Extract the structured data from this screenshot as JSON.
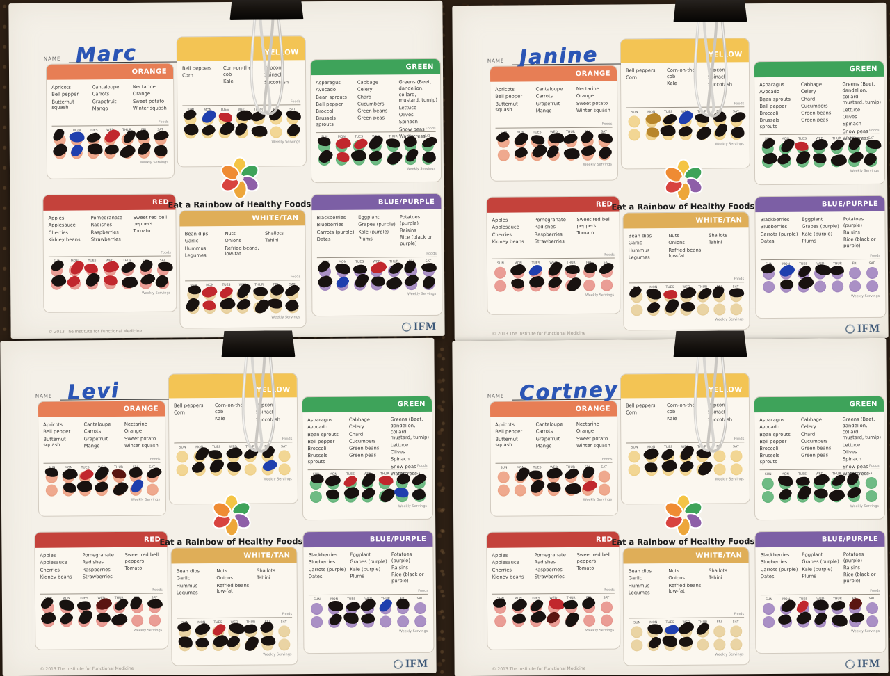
{
  "shared": {
    "name_label": "NAME",
    "title": "Eat a Rainbow of Healthy Foods",
    "footer": "© 2013 The Institute for Functional Medicine",
    "logo_text": "IFM",
    "foods_label": "Foods",
    "weekly_label": "Weekly Servings",
    "days": [
      "SUN",
      "MON",
      "TUES",
      "WED",
      "THUR",
      "FRI",
      "SAT"
    ],
    "panels": [
      {
        "key": "orange",
        "label": "ORANGE",
        "header_color": "#E77E55",
        "circle_color": "#EFA98E",
        "circle_ring": "#DE8A66",
        "foods_height": 64,
        "columns": [
          [
            "Apricots",
            "Bell pepper",
            "Butternut squash"
          ],
          [
            "Cantaloupe",
            "Carrots",
            "Grapefruit",
            "Mango"
          ],
          [
            "Nectarine",
            "Orange",
            "Sweet potato",
            "Winter squash"
          ]
        ]
      },
      {
        "key": "yellow",
        "label": "YELLOW",
        "header_color": "#F3C454",
        "circle_color": "#F2D694",
        "circle_ring": "#E5BE65",
        "foods_height": 62,
        "columns": [
          [
            "Bell peppers",
            "Corn"
          ],
          [
            "Corn-on-the-cob",
            "Kale"
          ],
          [
            "Popcorn",
            "Spinach",
            "Succotash"
          ]
        ]
      },
      {
        "key": "green",
        "label": "GREEN",
        "header_color": "#3EA35A",
        "circle_color": "#6FBB84",
        "circle_ring": "#46A061",
        "foods_height": 80,
        "columns": [
          [
            "Asparagus",
            "Avocado",
            "Bean sprouts",
            "Bell pepper",
            "Broccoli",
            "Brussels sprouts"
          ],
          [
            "Cabbage",
            "Celery",
            "Chard",
            "Cucumbers",
            "Green beans",
            "Green peas"
          ],
          [
            "Greens (Beet, dandelion, collard, mustard, turnip)",
            "Lettuce",
            "Olives",
            "Spinach",
            "Snow peas",
            "Watercress"
          ]
        ]
      },
      {
        "key": "red",
        "label": "RED",
        "header_color": "#C4423B",
        "circle_color": "#EA9D95",
        "circle_ring": "#D97C72",
        "foods_height": 64,
        "columns": [
          [
            "Apples",
            "Applesauce",
            "Cherries",
            "Kidney beans"
          ],
          [
            "Pomegranate",
            "Radishes",
            "Raspberries",
            "Strawberries"
          ],
          [
            "Sweet red bell peppers",
            "Tomato"
          ]
        ]
      },
      {
        "key": "whitetan",
        "label": "WHITE/TAN",
        "header_color": "#DFAE58",
        "circle_color": "#EAD4A4",
        "circle_ring": "#DCBC7C",
        "foods_height": 76,
        "columns": [
          [
            "Bean dips",
            "Garlic",
            "Hummus",
            "Legumes"
          ],
          [
            "Nuts",
            "Onions",
            "Refried beans, low-fat"
          ],
          [
            "Shallots",
            "Tahini"
          ]
        ]
      },
      {
        "key": "bluepurple",
        "label": "BLUE/PURPLE",
        "header_color": "#7C5FA5",
        "circle_color": "#AA90C5",
        "circle_ring": "#8B6BAE",
        "foods_height": 66,
        "columns": [
          [
            "Blackberries",
            "Blueberries",
            "Carrots (purple)",
            "Dates"
          ],
          [
            "Eggplant",
            "Grapes (purple)",
            "Kale (purple)",
            "Plums"
          ],
          [
            "Potatoes (purple)",
            "Raisins",
            "Rice (black or purple)"
          ]
        ]
      }
    ]
  },
  "mark_colors": {
    "black": "#181210",
    "red": "#C1272D",
    "blue": "#1F3FAE",
    "darkred": "#5A1511",
    "gold": "#B8862B"
  },
  "charts": [
    {
      "name": "Marc",
      "marks": {
        "orange": [
          [
            "black",
            "blue",
            "black",
            "red",
            "black",
            "black",
            "black"
          ],
          [
            "black",
            "blue",
            "black",
            "black",
            "black",
            "black",
            "black"
          ]
        ],
        "yellow": [
          [
            "black",
            "blue",
            "red",
            "black",
            "black",
            "black",
            "black"
          ],
          [
            "black",
            "black",
            "black",
            "black",
            "black",
            "none",
            "black"
          ]
        ],
        "green": [
          [
            "black",
            "red",
            "red",
            "black",
            "black",
            "black",
            "black"
          ],
          [
            "black",
            "red",
            "black",
            "black",
            "black",
            "black",
            "black"
          ]
        ],
        "red": [
          [
            "black",
            "red",
            "red",
            "red",
            "black",
            "black",
            "black"
          ],
          [
            "black",
            "red",
            "black",
            "red",
            "black",
            "black",
            "black"
          ]
        ],
        "whitetan": [
          [
            "black",
            "red",
            "red",
            "black",
            "black",
            "black",
            "black"
          ],
          [
            "black",
            "red",
            "black",
            "black",
            "black",
            "black",
            "black"
          ]
        ],
        "bluepurple": [
          [
            "black",
            "black",
            "black",
            "red",
            "black",
            "black",
            "black"
          ],
          [
            "black",
            "blue",
            "black",
            "black",
            "black",
            "black",
            "black"
          ]
        ]
      }
    },
    {
      "name": "Janine",
      "marks": {
        "orange": [
          [
            "black",
            "black",
            "black",
            "black",
            "black",
            "black",
            "black"
          ],
          [
            "none",
            "black",
            "black",
            "black",
            "black",
            "black",
            "black"
          ]
        ],
        "yellow": [
          [
            "none",
            "gold",
            "black",
            "blue",
            "black",
            "black",
            "black"
          ],
          [
            "none",
            "gold",
            "black",
            "black",
            "black",
            "black",
            "black"
          ]
        ],
        "green": [
          [
            "black",
            "black",
            "red",
            "black",
            "black",
            "black",
            "black"
          ],
          [
            "black",
            "black",
            "black",
            "black",
            "black",
            "black",
            "black"
          ]
        ],
        "red": [
          [
            "none",
            "black",
            "blue",
            "black",
            "black",
            "black",
            "black"
          ],
          [
            "none",
            "black",
            "black",
            "black",
            "black",
            "none",
            "none"
          ]
        ],
        "whitetan": [
          [
            "black",
            "black",
            "red",
            "black",
            "black",
            "black",
            "black"
          ],
          [
            "none",
            "black",
            "black",
            "black",
            "none",
            "none",
            "none"
          ]
        ],
        "bluepurple": [
          [
            "black",
            "blue",
            "black",
            "black",
            "black",
            "none",
            "none"
          ],
          [
            "none",
            "black",
            "black",
            "none",
            "none",
            "none",
            "none"
          ]
        ]
      }
    },
    {
      "name": "Levi",
      "marks": {
        "orange": [
          [
            "black",
            "black",
            "red",
            "black",
            "darkred",
            "black",
            "black"
          ],
          [
            "none",
            "black",
            "black",
            "black",
            "black",
            "blue",
            "none"
          ]
        ],
        "yellow": [
          [
            "none",
            "black",
            "black",
            "black",
            "black",
            "black",
            "none"
          ],
          [
            "none",
            "black",
            "black",
            "black",
            "none",
            "blue",
            "none"
          ]
        ],
        "green": [
          [
            "black",
            "black",
            "red",
            "black",
            "red",
            "black",
            "black"
          ],
          [
            "none",
            "black",
            "black",
            "black",
            "black",
            "blue",
            "black"
          ]
        ],
        "red": [
          [
            "black",
            "black",
            "black",
            "darkred",
            "black",
            "black",
            "black"
          ],
          [
            "black",
            "black",
            "black",
            "black",
            "black",
            "none",
            "none"
          ]
        ],
        "whitetan": [
          [
            "black",
            "black",
            "red",
            "black",
            "black",
            "black",
            "none"
          ],
          [
            "black",
            "black",
            "black",
            "black",
            "black",
            "black",
            "none"
          ]
        ],
        "bluepurple": [
          [
            "none",
            "black",
            "black",
            "black",
            "blue",
            "black",
            "none"
          ],
          [
            "none",
            "black",
            "black",
            "black",
            "none",
            "none",
            "none"
          ]
        ]
      }
    },
    {
      "name": "Cortney",
      "marks": {
        "orange": [
          [
            "none",
            "black",
            "black",
            "black",
            "black",
            "black",
            "none"
          ],
          [
            "none",
            "none",
            "black",
            "black",
            "black",
            "red",
            "none"
          ]
        ],
        "yellow": [
          [
            "none",
            "black",
            "black",
            "black",
            "black",
            "none",
            "none"
          ],
          [
            "none",
            "black",
            "black",
            "black",
            "black",
            "none",
            "none"
          ]
        ],
        "green": [
          [
            "none",
            "black",
            "black",
            "black",
            "black",
            "black",
            "none"
          ],
          [
            "none",
            "black",
            "black",
            "black",
            "black",
            "black",
            "none"
          ]
        ],
        "red": [
          [
            "black",
            "black",
            "black",
            "red",
            "black",
            "black",
            "none"
          ],
          [
            "none",
            "black",
            "black",
            "darkred",
            "black",
            "none",
            "none"
          ]
        ],
        "whitetan": [
          [
            "none",
            "black",
            "blue",
            "black",
            "black",
            "none",
            "none"
          ],
          [
            "none",
            "black",
            "black",
            "black",
            "none",
            "none",
            "none"
          ]
        ],
        "bluepurple": [
          [
            "none",
            "black",
            "red",
            "black",
            "black",
            "darkred",
            "none"
          ],
          [
            "none",
            "black",
            "black",
            "black",
            "black",
            "black",
            "none"
          ]
        ]
      }
    }
  ]
}
